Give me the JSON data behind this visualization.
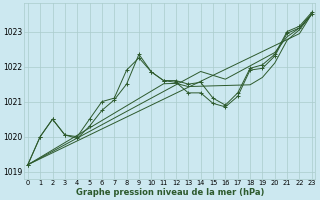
{
  "xlabel": "Graphe pression niveau de la mer (hPa)",
  "bg_color": "#cce8f0",
  "grid_color": "#aacccc",
  "line_color": "#2d5a2d",
  "x_ticks": [
    0,
    1,
    2,
    3,
    4,
    5,
    6,
    7,
    8,
    9,
    10,
    11,
    12,
    13,
    14,
    15,
    16,
    17,
    18,
    19,
    20,
    21,
    22,
    23
  ],
  "ylim": [
    1018.8,
    1023.8
  ],
  "yticks": [
    1019,
    1020,
    1021,
    1022,
    1023
  ],
  "series_with_markers": [
    [
      1019.2,
      1020.0,
      1020.5,
      1020.05,
      1019.95,
      1020.3,
      1020.75,
      1021.05,
      1021.5,
      1022.35,
      1021.85,
      1021.6,
      1021.6,
      1021.5,
      1021.55,
      1021.1,
      1020.9,
      1021.25,
      1021.95,
      1022.05,
      1022.35,
      1023.0,
      1023.15,
      1023.55
    ],
    [
      1019.2,
      1020.0,
      1020.5,
      1020.05,
      1020.0,
      1020.5,
      1021.0,
      1021.1,
      1021.9,
      1022.25,
      1021.85,
      1021.6,
      1021.55,
      1021.25,
      1021.25,
      1020.95,
      1020.85,
      1021.15,
      1021.9,
      1021.95,
      1022.3,
      1022.95,
      1023.1,
      1023.5
    ]
  ],
  "series_straight": [
    [
      1019.2,
      1019.37,
      1019.54,
      1019.71,
      1019.88,
      1020.05,
      1020.22,
      1020.39,
      1020.56,
      1020.73,
      1020.9,
      1021.07,
      1021.24,
      1021.41,
      1021.58,
      1021.75,
      1021.92,
      1022.09,
      1022.26,
      1022.43,
      1022.6,
      1022.77,
      1022.94,
      1023.5
    ],
    [
      1019.2,
      1019.39,
      1019.58,
      1019.77,
      1019.96,
      1020.15,
      1020.34,
      1020.53,
      1020.72,
      1020.91,
      1021.1,
      1021.29,
      1021.48,
      1021.67,
      1021.86,
      1021.75,
      1021.64,
      1021.83,
      1022.02,
      1022.21,
      1022.4,
      1022.85,
      1023.1,
      1023.5
    ],
    [
      1019.2,
      1019.41,
      1019.62,
      1019.83,
      1020.04,
      1020.25,
      1020.46,
      1020.67,
      1020.88,
      1021.09,
      1021.3,
      1021.51,
      1021.52,
      1021.43,
      1021.44,
      1021.45,
      1021.46,
      1021.47,
      1021.48,
      1021.69,
      1022.1,
      1022.75,
      1023.05,
      1023.5
    ]
  ]
}
